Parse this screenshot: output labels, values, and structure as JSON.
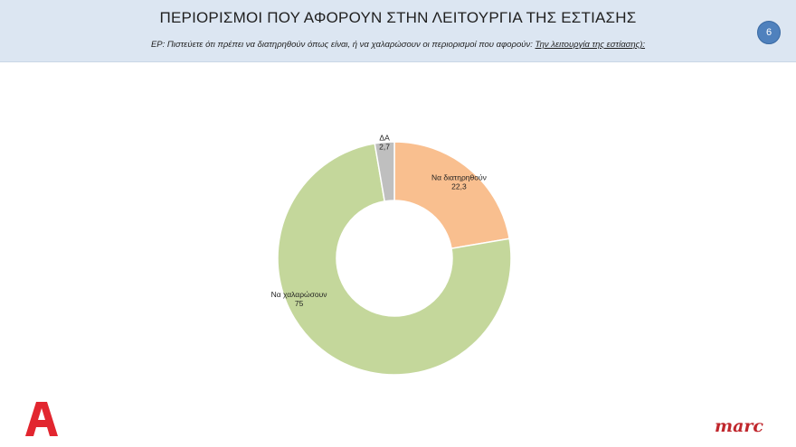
{
  "header": {
    "title": "ΠΕΡΙΟΡΙΣΜΟΙ ΠΟΥ ΑΦΟΡΟΥΝ ΣΤΗΝ ΛΕΙΤΟΥΡΓΙΑ ΤΗΣ ΕΣΤΙΑΣΗΣ",
    "subtitle_prefix": "ΕΡ:  Πιστεύετε ότι πρέπει  να διατηρηθούν όπως είναι, ή να χαλαρώσουν οι περιορισμοί που αφορούν: ",
    "subtitle_underlined": "Την λειτουργία της εστίασης):",
    "page_number": "6"
  },
  "chart_data": {
    "type": "pie",
    "donut": true,
    "categories": [
      "Να διατηρηθούν",
      "Να χαλαρώσουν",
      "ΔΑ"
    ],
    "values": [
      22.3,
      75,
      2.7
    ],
    "value_labels": [
      "22,3",
      "75",
      "2,7"
    ],
    "colors": [
      "#f9bf8f",
      "#c4d79b",
      "#bfbfbf"
    ]
  },
  "footer": {
    "alpha_logo": "alpha-logo",
    "marc_logo": "marc"
  }
}
